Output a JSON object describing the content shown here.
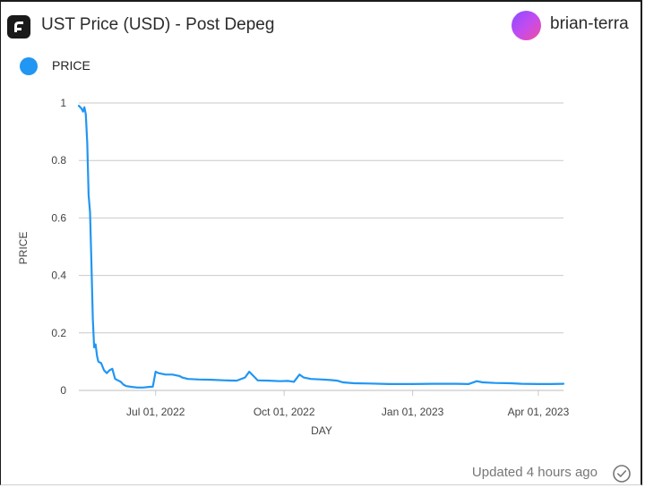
{
  "header": {
    "title": "UST Price (USD) - Post Depeg",
    "username": "brian-terra",
    "logo_icon": "flipside-logo-icon",
    "avatar_colors": [
      "#8a4cff",
      "#f24ca0"
    ]
  },
  "footer": {
    "updated_text": "Updated 4 hours ago",
    "status_icon": "check-circle-icon"
  },
  "chart_data": {
    "type": "line",
    "xlabel": "DAY",
    "ylabel": "PRICE",
    "ylim": [
      0,
      1
    ],
    "y_ticks": [
      0,
      0.2,
      0.4,
      0.6,
      0.8,
      1
    ],
    "y_tick_labels": [
      "0",
      "0.2",
      "0.4",
      "0.6",
      "0.8",
      "1"
    ],
    "x_ticks": [
      "2022-07-01",
      "2022-10-01",
      "2023-01-01",
      "2023-04-01"
    ],
    "x_tick_labels": [
      "Jul 01, 2022",
      "Oct 01, 2022",
      "Jan 01, 2023",
      "Apr 01, 2023"
    ],
    "xlim": [
      "2022-05-07",
      "2023-04-19"
    ],
    "grid": true,
    "legend_position": "top-left",
    "series": [
      {
        "name": "PRICE",
        "color": "#2196f3",
        "points": [
          [
            "2022-05-07",
            0.99
          ],
          [
            "2022-05-08",
            0.985
          ],
          [
            "2022-05-09",
            0.98
          ],
          [
            "2022-05-10",
            0.97
          ],
          [
            "2022-05-11",
            0.985
          ],
          [
            "2022-05-12",
            0.96
          ],
          [
            "2022-05-13",
            0.86
          ],
          [
            "2022-05-14",
            0.68
          ],
          [
            "2022-05-15",
            0.62
          ],
          [
            "2022-05-16",
            0.45
          ],
          [
            "2022-05-17",
            0.25
          ],
          [
            "2022-05-18",
            0.15
          ],
          [
            "2022-05-19",
            0.16
          ],
          [
            "2022-05-20",
            0.12
          ],
          [
            "2022-05-21",
            0.1
          ],
          [
            "2022-05-23",
            0.095
          ],
          [
            "2022-05-25",
            0.07
          ],
          [
            "2022-05-27",
            0.06
          ],
          [
            "2022-05-29",
            0.07
          ],
          [
            "2022-05-31",
            0.075
          ],
          [
            "2022-06-02",
            0.04
          ],
          [
            "2022-06-04",
            0.035
          ],
          [
            "2022-06-06",
            0.03
          ],
          [
            "2022-06-08",
            0.02
          ],
          [
            "2022-06-10",
            0.015
          ],
          [
            "2022-06-14",
            0.012
          ],
          [
            "2022-06-18",
            0.01
          ],
          [
            "2022-06-22",
            0.01
          ],
          [
            "2022-06-26",
            0.012
          ],
          [
            "2022-06-29",
            0.013
          ],
          [
            "2022-07-01",
            0.065
          ],
          [
            "2022-07-03",
            0.06
          ],
          [
            "2022-07-08",
            0.055
          ],
          [
            "2022-07-13",
            0.055
          ],
          [
            "2022-07-18",
            0.05
          ],
          [
            "2022-07-20",
            0.045
          ],
          [
            "2022-07-24",
            0.04
          ],
          [
            "2022-08-01",
            0.038
          ],
          [
            "2022-08-10",
            0.037
          ],
          [
            "2022-08-20",
            0.035
          ],
          [
            "2022-08-28",
            0.034
          ],
          [
            "2022-09-03",
            0.045
          ],
          [
            "2022-09-06",
            0.065
          ],
          [
            "2022-09-09",
            0.05
          ],
          [
            "2022-09-12",
            0.035
          ],
          [
            "2022-09-20",
            0.034
          ],
          [
            "2022-09-28",
            0.032
          ],
          [
            "2022-10-04",
            0.033
          ],
          [
            "2022-10-08",
            0.03
          ],
          [
            "2022-10-12",
            0.055
          ],
          [
            "2022-10-15",
            0.045
          ],
          [
            "2022-10-20",
            0.04
          ],
          [
            "2022-10-28",
            0.038
          ],
          [
            "2022-11-03",
            0.036
          ],
          [
            "2022-11-08",
            0.034
          ],
          [
            "2022-11-12",
            0.028
          ],
          [
            "2022-11-20",
            0.025
          ],
          [
            "2022-12-01",
            0.024
          ],
          [
            "2022-12-15",
            0.022
          ],
          [
            "2023-01-01",
            0.022
          ],
          [
            "2023-01-15",
            0.023
          ],
          [
            "2023-02-01",
            0.023
          ],
          [
            "2023-02-10",
            0.022
          ],
          [
            "2023-02-16",
            0.032
          ],
          [
            "2023-02-20",
            0.028
          ],
          [
            "2023-03-01",
            0.026
          ],
          [
            "2023-03-12",
            0.025
          ],
          [
            "2023-03-20",
            0.023
          ],
          [
            "2023-04-01",
            0.022
          ],
          [
            "2023-04-10",
            0.022
          ],
          [
            "2023-04-19",
            0.023
          ]
        ]
      }
    ]
  }
}
